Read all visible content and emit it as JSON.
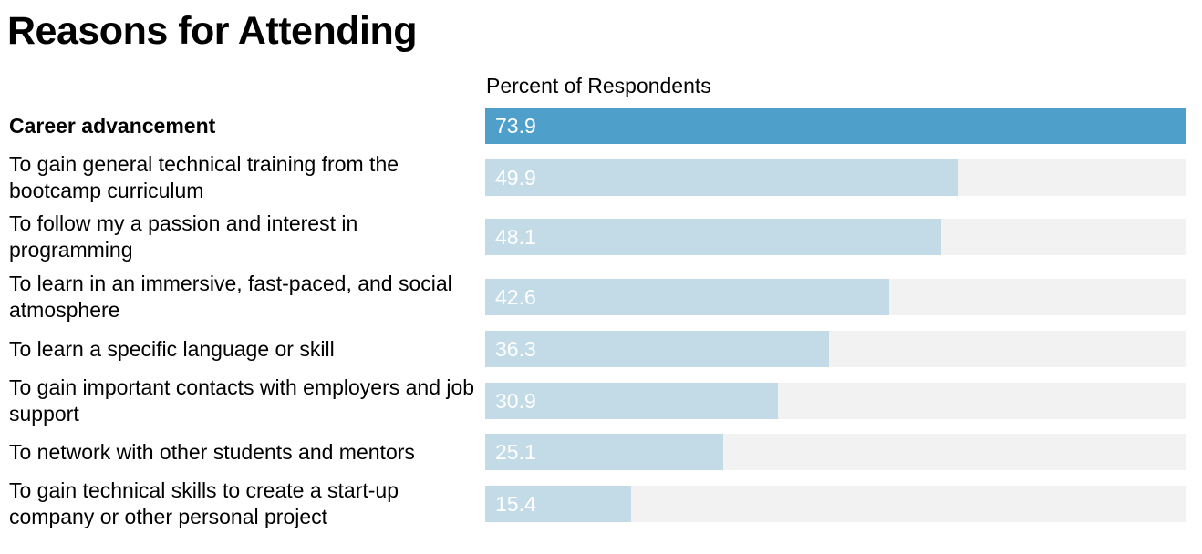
{
  "title": "Reasons for Attending",
  "column_header": "Percent of Respondents",
  "colors": {
    "highlight_bar": "#4e9fca",
    "normal_bar": "#c3dbe6",
    "track": "#f2f2f2",
    "value_text": "#ffffff"
  },
  "chart_data": {
    "type": "bar",
    "orientation": "horizontal",
    "title": "Reasons for Attending",
    "value_label": "Percent of Respondents",
    "xlim": [
      0,
      73.9
    ],
    "grid": false,
    "legend": "none",
    "categories": [
      "Career advancement",
      "To gain general technical training from the bootcamp curriculum",
      "To follow my a passion and interest in programming",
      "To learn in an immersive, fast-paced, and social atmosphere",
      "To learn a specific language or skill",
      "To gain important contacts with employers and job support",
      "To network with other students and mentors",
      "To gain technical skills to create a start-up company or other personal project"
    ],
    "values": [
      73.9,
      49.9,
      48.1,
      42.6,
      36.3,
      30.9,
      25.1,
      15.4
    ],
    "value_labels": [
      "73.9",
      "49.9",
      "48.1",
      "42.6",
      "36.3",
      "30.9",
      "25.1",
      "15.4"
    ],
    "highlighted": [
      true,
      false,
      false,
      false,
      false,
      false,
      false,
      false
    ]
  }
}
